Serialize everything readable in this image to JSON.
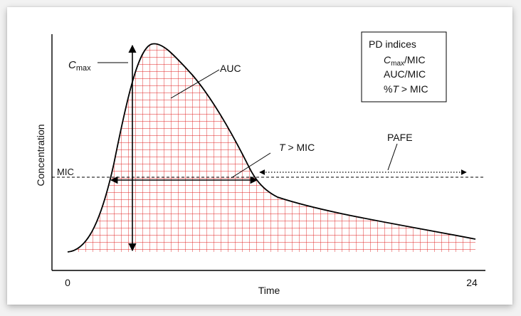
{
  "figure": {
    "x_axis_label": "Time",
    "y_axis_label": "Concentration",
    "x_tick_start": "0",
    "x_tick_end": "24",
    "mic_label": "MIC",
    "auc_label": "AUC",
    "cmax_label_main": "C",
    "cmax_label_sub": "max",
    "t_mic_label_var": "T",
    "t_mic_label_rest": " > MIC",
    "pafe_label": "PAFE"
  },
  "legend_box": {
    "title": "PD indices",
    "line1_var": "C",
    "line1_sub": "max",
    "line1_rest": "/MIC",
    "line2": "AUC/MIC",
    "line3_prefix": "%",
    "line3_var": "T",
    "line3_rest": " > MIC"
  },
  "colors": {
    "grid_fill": "#e02020",
    "curve": "#000000",
    "axes": "#000000"
  }
}
